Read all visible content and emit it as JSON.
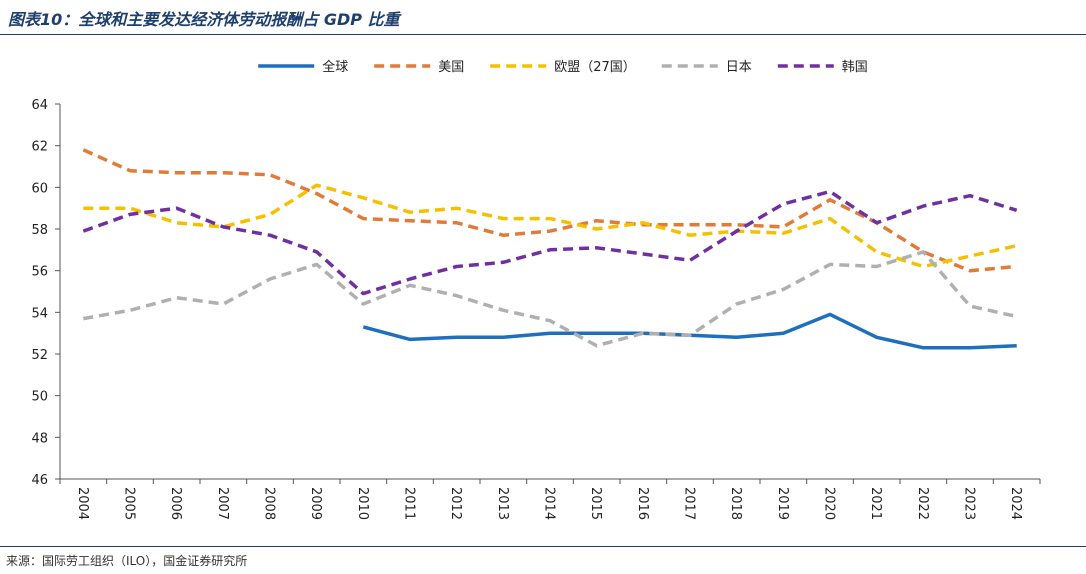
{
  "title": "图表10：全球和主要发达经济体劳动报酬占 GDP 比重",
  "source": "来源：国际劳工组织（ILO），国金证券研究所",
  "chart_data": {
    "type": "line",
    "categories": [
      "2004",
      "2005",
      "2006",
      "2007",
      "2008",
      "2009",
      "2010",
      "2011",
      "2012",
      "2013",
      "2014",
      "2015",
      "2016",
      "2017",
      "2018",
      "2019",
      "2020",
      "2021",
      "2022",
      "2023",
      "2024"
    ],
    "ylim": [
      46,
      64
    ],
    "yticks": [
      46,
      48,
      50,
      52,
      54,
      56,
      58,
      60,
      62,
      64
    ],
    "grid": false,
    "legend_position": "top",
    "series": [
      {
        "name": "全球",
        "color": "#1f6fbf",
        "dash": "solid",
        "values": [
          null,
          null,
          null,
          null,
          null,
          null,
          53.3,
          52.7,
          52.8,
          52.8,
          53.0,
          53.0,
          53.0,
          52.9,
          52.8,
          53.0,
          53.9,
          52.8,
          52.3,
          52.3,
          52.4
        ]
      },
      {
        "name": "美国",
        "color": "#e07b39",
        "dash": "dashed",
        "values": [
          61.8,
          60.8,
          60.7,
          60.7,
          60.6,
          59.7,
          58.5,
          58.4,
          58.3,
          57.7,
          57.9,
          58.4,
          58.2,
          58.2,
          58.2,
          58.1,
          59.4,
          58.3,
          56.9,
          56.0,
          56.2
        ]
      },
      {
        "name": "欧盟（27国）",
        "color": "#f5c000",
        "dash": "dashed",
        "values": [
          59.0,
          59.0,
          58.3,
          58.1,
          58.7,
          60.1,
          59.5,
          58.8,
          59.0,
          58.5,
          58.5,
          58.0,
          58.3,
          57.7,
          57.9,
          57.8,
          58.5,
          56.9,
          56.2,
          56.7,
          57.2
        ]
      },
      {
        "name": "日本",
        "color": "#b0b0b0",
        "dash": "dashed",
        "values": [
          53.7,
          54.1,
          54.7,
          54.4,
          55.6,
          56.3,
          54.4,
          55.3,
          54.8,
          54.1,
          53.6,
          52.4,
          53.0,
          52.9,
          54.4,
          55.1,
          56.3,
          56.2,
          56.9,
          54.3,
          53.8
        ]
      },
      {
        "name": "韩国",
        "color": "#7030a0",
        "dash": "dashed",
        "values": [
          57.9,
          58.7,
          59.0,
          58.1,
          57.7,
          56.9,
          54.9,
          55.6,
          56.2,
          56.4,
          57.0,
          57.1,
          56.8,
          56.5,
          57.9,
          59.2,
          59.8,
          58.3,
          59.1,
          59.6,
          58.9
        ]
      }
    ]
  }
}
